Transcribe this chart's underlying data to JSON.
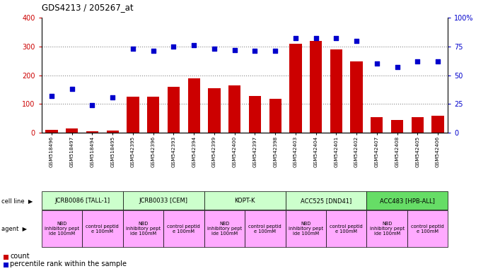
{
  "title": "GDS4213 / 205267_at",
  "samples": [
    "GSM518496",
    "GSM518497",
    "GSM518494",
    "GSM518495",
    "GSM542395",
    "GSM542396",
    "GSM542393",
    "GSM542394",
    "GSM542399",
    "GSM542400",
    "GSM542397",
    "GSM542398",
    "GSM542403",
    "GSM542404",
    "GSM542401",
    "GSM542402",
    "GSM542407",
    "GSM542408",
    "GSM542405",
    "GSM542406"
  ],
  "counts": [
    10,
    15,
    5,
    8,
    125,
    125,
    160,
    190,
    155,
    165,
    128,
    118,
    310,
    320,
    290,
    248,
    55,
    45,
    55,
    58
  ],
  "percentiles": [
    32,
    38,
    24,
    31,
    73,
    71,
    75,
    76,
    73,
    72,
    71,
    71,
    82,
    82,
    82,
    80,
    60,
    57,
    62,
    62
  ],
  "bar_color": "#cc0000",
  "dot_color": "#0000cc",
  "ylim_left": [
    0,
    400
  ],
  "ylim_right": [
    0,
    100
  ],
  "yticks_left": [
    0,
    100,
    200,
    300,
    400
  ],
  "yticks_right": [
    0,
    25,
    50,
    75,
    100
  ],
  "cell_lines": [
    {
      "label": "JCRB0086 [TALL-1]",
      "start": 0,
      "end": 4,
      "color": "#ccffcc"
    },
    {
      "label": "JCRB0033 [CEM]",
      "start": 4,
      "end": 8,
      "color": "#ccffcc"
    },
    {
      "label": "KOPT-K",
      "start": 8,
      "end": 12,
      "color": "#ccffcc"
    },
    {
      "label": "ACC525 [DND41]",
      "start": 12,
      "end": 16,
      "color": "#ccffcc"
    },
    {
      "label": "ACC483 [HPB-ALL]",
      "start": 16,
      "end": 20,
      "color": "#66dd66"
    }
  ],
  "agents": [
    {
      "label": "NBD\ninhibitory pept\nide 100mM",
      "start": 0,
      "end": 2,
      "color": "#ffaaff"
    },
    {
      "label": "control peptid\ne 100mM",
      "start": 2,
      "end": 4,
      "color": "#ffaaff"
    },
    {
      "label": "NBD\ninhibitory pept\nide 100mM",
      "start": 4,
      "end": 6,
      "color": "#ffaaff"
    },
    {
      "label": "control peptid\ne 100mM",
      "start": 6,
      "end": 8,
      "color": "#ffaaff"
    },
    {
      "label": "NBD\ninhibitory pept\nide 100mM",
      "start": 8,
      "end": 10,
      "color": "#ffaaff"
    },
    {
      "label": "control peptid\ne 100mM",
      "start": 10,
      "end": 12,
      "color": "#ffaaff"
    },
    {
      "label": "NBD\ninhibitory pept\nide 100mM",
      "start": 12,
      "end": 14,
      "color": "#ffaaff"
    },
    {
      "label": "control peptid\ne 100mM",
      "start": 14,
      "end": 16,
      "color": "#ffaaff"
    },
    {
      "label": "NBD\ninhibitory pept\nide 100mM",
      "start": 16,
      "end": 18,
      "color": "#ffaaff"
    },
    {
      "label": "control peptid\ne 100mM",
      "start": 18,
      "end": 20,
      "color": "#ffaaff"
    }
  ],
  "grid_color": "#888888",
  "tick_label_color_left": "#cc0000",
  "tick_label_color_right": "#0000cc",
  "legend_count_label": "count",
  "legend_pct_label": "percentile rank within the sample",
  "cell_line_row_label": "cell line",
  "agent_row_label": "agent",
  "xlim": [
    -0.5,
    19.5
  ],
  "bar_width": 0.6
}
